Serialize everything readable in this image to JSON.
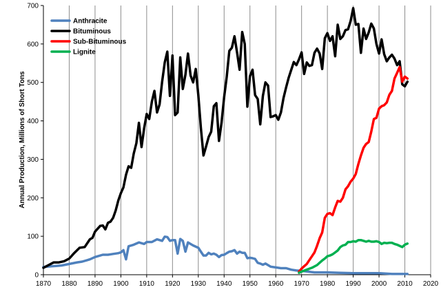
{
  "chart_data": {
    "type": "line",
    "title": "",
    "xlabel": "",
    "ylabel": "Annual Production, Millions of Short Tons",
    "xlim": [
      1870,
      2020
    ],
    "ylim": [
      0,
      700
    ],
    "xticks": [
      1870,
      1880,
      1890,
      1900,
      1910,
      1920,
      1930,
      1940,
      1950,
      1960,
      1970,
      1980,
      1990,
      2000,
      2010,
      2020
    ],
    "yticks": [
      0,
      100,
      200,
      300,
      400,
      500,
      600,
      700
    ],
    "grid": {
      "vertical": true,
      "horizontal": false
    },
    "legend": "top-left",
    "series": [
      {
        "name": "Anthracite",
        "color": "#4f81bd",
        "points": [
          [
            1870,
            20
          ],
          [
            1873,
            22
          ],
          [
            1875,
            23
          ],
          [
            1877,
            24
          ],
          [
            1880,
            28
          ],
          [
            1883,
            32
          ],
          [
            1885,
            34
          ],
          [
            1888,
            40
          ],
          [
            1890,
            46
          ],
          [
            1893,
            52
          ],
          [
            1895,
            52
          ],
          [
            1897,
            54
          ],
          [
            1899,
            56
          ],
          [
            1900,
            58
          ],
          [
            1901,
            64
          ],
          [
            1902,
            40
          ],
          [
            1903,
            74
          ],
          [
            1905,
            78
          ],
          [
            1907,
            84
          ],
          [
            1909,
            80
          ],
          [
            1910,
            85
          ],
          [
            1912,
            85
          ],
          [
            1914,
            92
          ],
          [
            1916,
            88
          ],
          [
            1917,
            99
          ],
          [
            1918,
            98
          ],
          [
            1919,
            88
          ],
          [
            1920,
            90
          ],
          [
            1921,
            90
          ],
          [
            1922,
            55
          ],
          [
            1923,
            93
          ],
          [
            1924,
            88
          ],
          [
            1925,
            60
          ],
          [
            1926,
            84
          ],
          [
            1928,
            76
          ],
          [
            1930,
            70
          ],
          [
            1931,
            60
          ],
          [
            1932,
            50
          ],
          [
            1933,
            50
          ],
          [
            1934,
            57
          ],
          [
            1935,
            53
          ],
          [
            1936,
            55
          ],
          [
            1937,
            52
          ],
          [
            1938,
            46
          ],
          [
            1939,
            51
          ],
          [
            1940,
            52
          ],
          [
            1941,
            56
          ],
          [
            1942,
            60
          ],
          [
            1943,
            61
          ],
          [
            1944,
            64
          ],
          [
            1945,
            55
          ],
          [
            1946,
            60
          ],
          [
            1947,
            57
          ],
          [
            1948,
            57
          ],
          [
            1949,
            43
          ],
          [
            1950,
            44
          ],
          [
            1951,
            43
          ],
          [
            1952,
            41
          ],
          [
            1953,
            31
          ],
          [
            1954,
            29
          ],
          [
            1955,
            26
          ],
          [
            1956,
            29
          ],
          [
            1958,
            21
          ],
          [
            1960,
            19
          ],
          [
            1962,
            17
          ],
          [
            1964,
            17
          ],
          [
            1966,
            13
          ],
          [
            1968,
            11
          ],
          [
            1970,
            10
          ],
          [
            1975,
            6
          ],
          [
            1980,
            6
          ],
          [
            1985,
            5
          ],
          [
            1990,
            4
          ],
          [
            1995,
            4
          ],
          [
            2000,
            4
          ],
          [
            2005,
            2
          ],
          [
            2011,
            2
          ]
        ]
      },
      {
        "name": "Bituminous",
        "color": "#000000",
        "points": [
          [
            1870,
            18
          ],
          [
            1872,
            25
          ],
          [
            1874,
            32
          ],
          [
            1876,
            32
          ],
          [
            1878,
            35
          ],
          [
            1880,
            42
          ],
          [
            1882,
            57
          ],
          [
            1884,
            70
          ],
          [
            1886,
            72
          ],
          [
            1888,
            92
          ],
          [
            1889,
            96
          ],
          [
            1890,
            112
          ],
          [
            1892,
            127
          ],
          [
            1893,
            128
          ],
          [
            1894,
            118
          ],
          [
            1895,
            135
          ],
          [
            1896,
            138
          ],
          [
            1897,
            148
          ],
          [
            1898,
            167
          ],
          [
            1899,
            193
          ],
          [
            1900,
            212
          ],
          [
            1901,
            227
          ],
          [
            1902,
            260
          ],
          [
            1903,
            282
          ],
          [
            1904,
            278
          ],
          [
            1905,
            315
          ],
          [
            1906,
            342
          ],
          [
            1907,
            395
          ],
          [
            1908,
            332
          ],
          [
            1909,
            380
          ],
          [
            1910,
            418
          ],
          [
            1911,
            405
          ],
          [
            1912,
            450
          ],
          [
            1913,
            478
          ],
          [
            1914,
            422
          ],
          [
            1915,
            443
          ],
          [
            1916,
            502
          ],
          [
            1917,
            552
          ],
          [
            1918,
            580
          ],
          [
            1919,
            465
          ],
          [
            1920,
            570
          ],
          [
            1921,
            415
          ],
          [
            1922,
            422
          ],
          [
            1923,
            565
          ],
          [
            1924,
            483
          ],
          [
            1925,
            520
          ],
          [
            1926,
            575
          ],
          [
            1927,
            518
          ],
          [
            1928,
            500
          ],
          [
            1929,
            535
          ],
          [
            1930,
            467
          ],
          [
            1931,
            382
          ],
          [
            1932,
            310
          ],
          [
            1933,
            333
          ],
          [
            1934,
            358
          ],
          [
            1935,
            372
          ],
          [
            1936,
            438
          ],
          [
            1937,
            446
          ],
          [
            1938,
            348
          ],
          [
            1939,
            395
          ],
          [
            1940,
            462
          ],
          [
            1941,
            514
          ],
          [
            1942,
            582
          ],
          [
            1943,
            590
          ],
          [
            1944,
            620
          ],
          [
            1945,
            578
          ],
          [
            1946,
            533
          ],
          [
            1947,
            631
          ],
          [
            1948,
            600
          ],
          [
            1949,
            437
          ],
          [
            1950,
            516
          ],
          [
            1951,
            533
          ],
          [
            1952,
            467
          ],
          [
            1953,
            457
          ],
          [
            1954,
            391
          ],
          [
            1955,
            465
          ],
          [
            1956,
            500
          ],
          [
            1957,
            492
          ],
          [
            1958,
            410
          ],
          [
            1959,
            412
          ],
          [
            1960,
            415
          ],
          [
            1961,
            403
          ],
          [
            1962,
            422
          ],
          [
            1963,
            459
          ],
          [
            1964,
            487
          ],
          [
            1965,
            512
          ],
          [
            1966,
            533
          ],
          [
            1967,
            553
          ],
          [
            1968,
            545
          ],
          [
            1969,
            560
          ],
          [
            1970,
            578
          ],
          [
            1971,
            522
          ],
          [
            1972,
            552
          ],
          [
            1973,
            543
          ],
          [
            1974,
            545
          ],
          [
            1975,
            577
          ],
          [
            1976,
            588
          ],
          [
            1977,
            575
          ],
          [
            1978,
            535
          ],
          [
            1979,
            615
          ],
          [
            1980,
            628
          ],
          [
            1981,
            608
          ],
          [
            1982,
            620
          ],
          [
            1983,
            568
          ],
          [
            1984,
            650
          ],
          [
            1985,
            613
          ],
          [
            1986,
            620
          ],
          [
            1987,
            636
          ],
          [
            1988,
            638
          ],
          [
            1989,
            660
          ],
          [
            1990,
            693
          ],
          [
            1991,
            650
          ],
          [
            1992,
            652
          ],
          [
            1993,
            577
          ],
          [
            1994,
            640
          ],
          [
            1995,
            613
          ],
          [
            1996,
            630
          ],
          [
            1997,
            653
          ],
          [
            1998,
            640
          ],
          [
            1999,
            600
          ],
          [
            2000,
            575
          ],
          [
            2001,
            612
          ],
          [
            2002,
            573
          ],
          [
            2003,
            555
          ],
          [
            2004,
            565
          ],
          [
            2005,
            572
          ],
          [
            2006,
            562
          ],
          [
            2007,
            545
          ],
          [
            2008,
            555
          ],
          [
            2009,
            495
          ],
          [
            2010,
            490
          ],
          [
            2011,
            502
          ]
        ]
      },
      {
        "name": "Sub-Bituminous",
        "color": "#ff0000",
        "points": [
          [
            1969,
            8
          ],
          [
            1970,
            16
          ],
          [
            1971,
            22
          ],
          [
            1972,
            28
          ],
          [
            1973,
            38
          ],
          [
            1974,
            48
          ],
          [
            1975,
            58
          ],
          [
            1976,
            75
          ],
          [
            1977,
            95
          ],
          [
            1978,
            110
          ],
          [
            1979,
            148
          ],
          [
            1980,
            158
          ],
          [
            1981,
            160
          ],
          [
            1982,
            155
          ],
          [
            1983,
            175
          ],
          [
            1984,
            192
          ],
          [
            1985,
            190
          ],
          [
            1986,
            200
          ],
          [
            1987,
            222
          ],
          [
            1988,
            230
          ],
          [
            1989,
            242
          ],
          [
            1990,
            250
          ],
          [
            1991,
            262
          ],
          [
            1992,
            288
          ],
          [
            1993,
            310
          ],
          [
            1994,
            330
          ],
          [
            1995,
            340
          ],
          [
            1996,
            345
          ],
          [
            1997,
            372
          ],
          [
            1998,
            405
          ],
          [
            1999,
            408
          ],
          [
            2000,
            432
          ],
          [
            2001,
            438
          ],
          [
            2002,
            441
          ],
          [
            2003,
            448
          ],
          [
            2004,
            468
          ],
          [
            2005,
            478
          ],
          [
            2006,
            510
          ],
          [
            2007,
            525
          ],
          [
            2008,
            540
          ],
          [
            2009,
            502
          ],
          [
            2010,
            515
          ],
          [
            2011,
            510
          ]
        ]
      },
      {
        "name": "Lignite",
        "color": "#00b050",
        "points": [
          [
            1969,
            5
          ],
          [
            1970,
            8
          ],
          [
            1972,
            13
          ],
          [
            1974,
            18
          ],
          [
            1976,
            25
          ],
          [
            1978,
            37
          ],
          [
            1979,
            42
          ],
          [
            1980,
            48
          ],
          [
            1981,
            50
          ],
          [
            1982,
            53
          ],
          [
            1983,
            58
          ],
          [
            1984,
            63
          ],
          [
            1985,
            72
          ],
          [
            1986,
            76
          ],
          [
            1987,
            78
          ],
          [
            1988,
            85
          ],
          [
            1989,
            85
          ],
          [
            1990,
            87
          ],
          [
            1991,
            86
          ],
          [
            1992,
            90
          ],
          [
            1993,
            90
          ],
          [
            1994,
            88
          ],
          [
            1995,
            86
          ],
          [
            1996,
            88
          ],
          [
            1997,
            86
          ],
          [
            1998,
            86
          ],
          [
            1999,
            87
          ],
          [
            2000,
            85
          ],
          [
            2001,
            80
          ],
          [
            2002,
            83
          ],
          [
            2003,
            82
          ],
          [
            2004,
            83
          ],
          [
            2005,
            83
          ],
          [
            2006,
            80
          ],
          [
            2007,
            78
          ],
          [
            2008,
            75
          ],
          [
            2009,
            72
          ],
          [
            2010,
            78
          ],
          [
            2011,
            81
          ]
        ]
      }
    ]
  }
}
